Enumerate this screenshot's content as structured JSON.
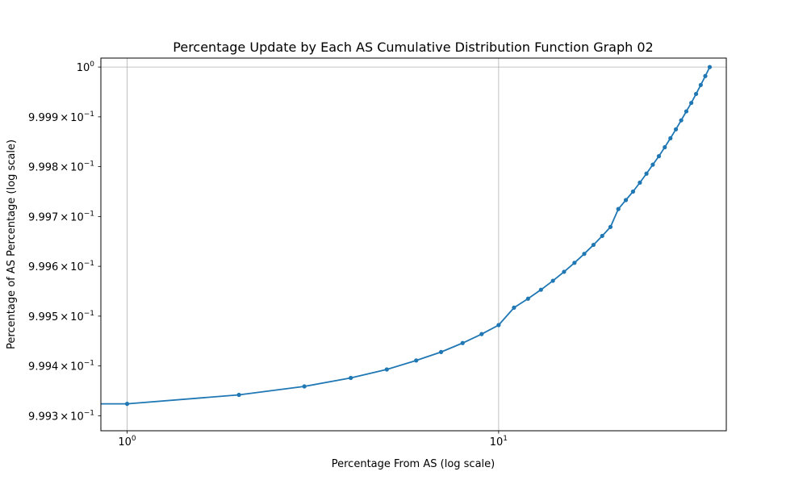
{
  "chart_data": {
    "type": "line",
    "title": "Percentage Update by Each AS Cumulative Distribution Function Graph 02",
    "xlabel": "Percentage From AS (log scale)",
    "ylabel": "Percentage of AS Percentage (log scale)",
    "xscale": "log",
    "yscale": "log",
    "xlim": [
      0.85,
      41
    ],
    "ylim": [
      0.99927,
      1.000018
    ],
    "grid": "major",
    "x_ticks": [
      {
        "value": 1,
        "base": "10",
        "exp": "0"
      },
      {
        "value": 10,
        "base": "10",
        "exp": "1"
      }
    ],
    "y_ticks": [
      {
        "value": 0.9993,
        "mant": "9.993",
        "times": "×",
        "base": "10",
        "exp": "−1"
      },
      {
        "value": 0.9994,
        "mant": "9.994",
        "times": "×",
        "base": "10",
        "exp": "−1"
      },
      {
        "value": 0.9995,
        "mant": "9.995",
        "times": "×",
        "base": "10",
        "exp": "−1"
      },
      {
        "value": 0.9996,
        "mant": "9.996",
        "times": "×",
        "base": "10",
        "exp": "−1"
      },
      {
        "value": 0.9997,
        "mant": "9.997",
        "times": "×",
        "base": "10",
        "exp": "−1"
      },
      {
        "value": 0.9998,
        "mant": "9.998",
        "times": "×",
        "base": "10",
        "exp": "−1"
      },
      {
        "value": 0.9999,
        "mant": "9.999",
        "times": "×",
        "base": "10",
        "exp": "−1"
      },
      {
        "value": 1.0,
        "mant": "",
        "times": "",
        "base": "10",
        "exp": "0"
      }
    ],
    "series": [
      {
        "color": "#1f77b4",
        "points": [
          [
            0.5,
            0.999324
          ],
          [
            1,
            0.999324
          ],
          [
            2,
            0.999342
          ],
          [
            3,
            0.999359
          ],
          [
            4,
            0.999376
          ],
          [
            5,
            0.999393
          ],
          [
            6,
            0.999411
          ],
          [
            7,
            0.999428
          ],
          [
            8,
            0.999446
          ],
          [
            9,
            0.999464
          ],
          [
            10,
            0.999482
          ],
          [
            11,
            0.999517
          ],
          [
            12,
            0.999535
          ],
          [
            13,
            0.999553
          ],
          [
            14,
            0.999571
          ],
          [
            15,
            0.999589
          ],
          [
            16,
            0.999607
          ],
          [
            17,
            0.999625
          ],
          [
            18,
            0.999643
          ],
          [
            19,
            0.999661
          ],
          [
            20,
            0.999679
          ],
          [
            21,
            0.999715
          ],
          [
            22,
            0.999733
          ],
          [
            23,
            0.99975
          ],
          [
            24,
            0.999768
          ],
          [
            25,
            0.999786
          ],
          [
            26,
            0.999804
          ],
          [
            27,
            0.999821
          ],
          [
            28,
            0.999839
          ],
          [
            29,
            0.999857
          ],
          [
            30,
            0.999875
          ],
          [
            31,
            0.999893
          ],
          [
            32,
            0.999911
          ],
          [
            33,
            0.999928
          ],
          [
            34,
            0.999946
          ],
          [
            35,
            0.999964
          ],
          [
            36,
            0.999982
          ],
          [
            37,
            1.0
          ]
        ]
      }
    ]
  }
}
